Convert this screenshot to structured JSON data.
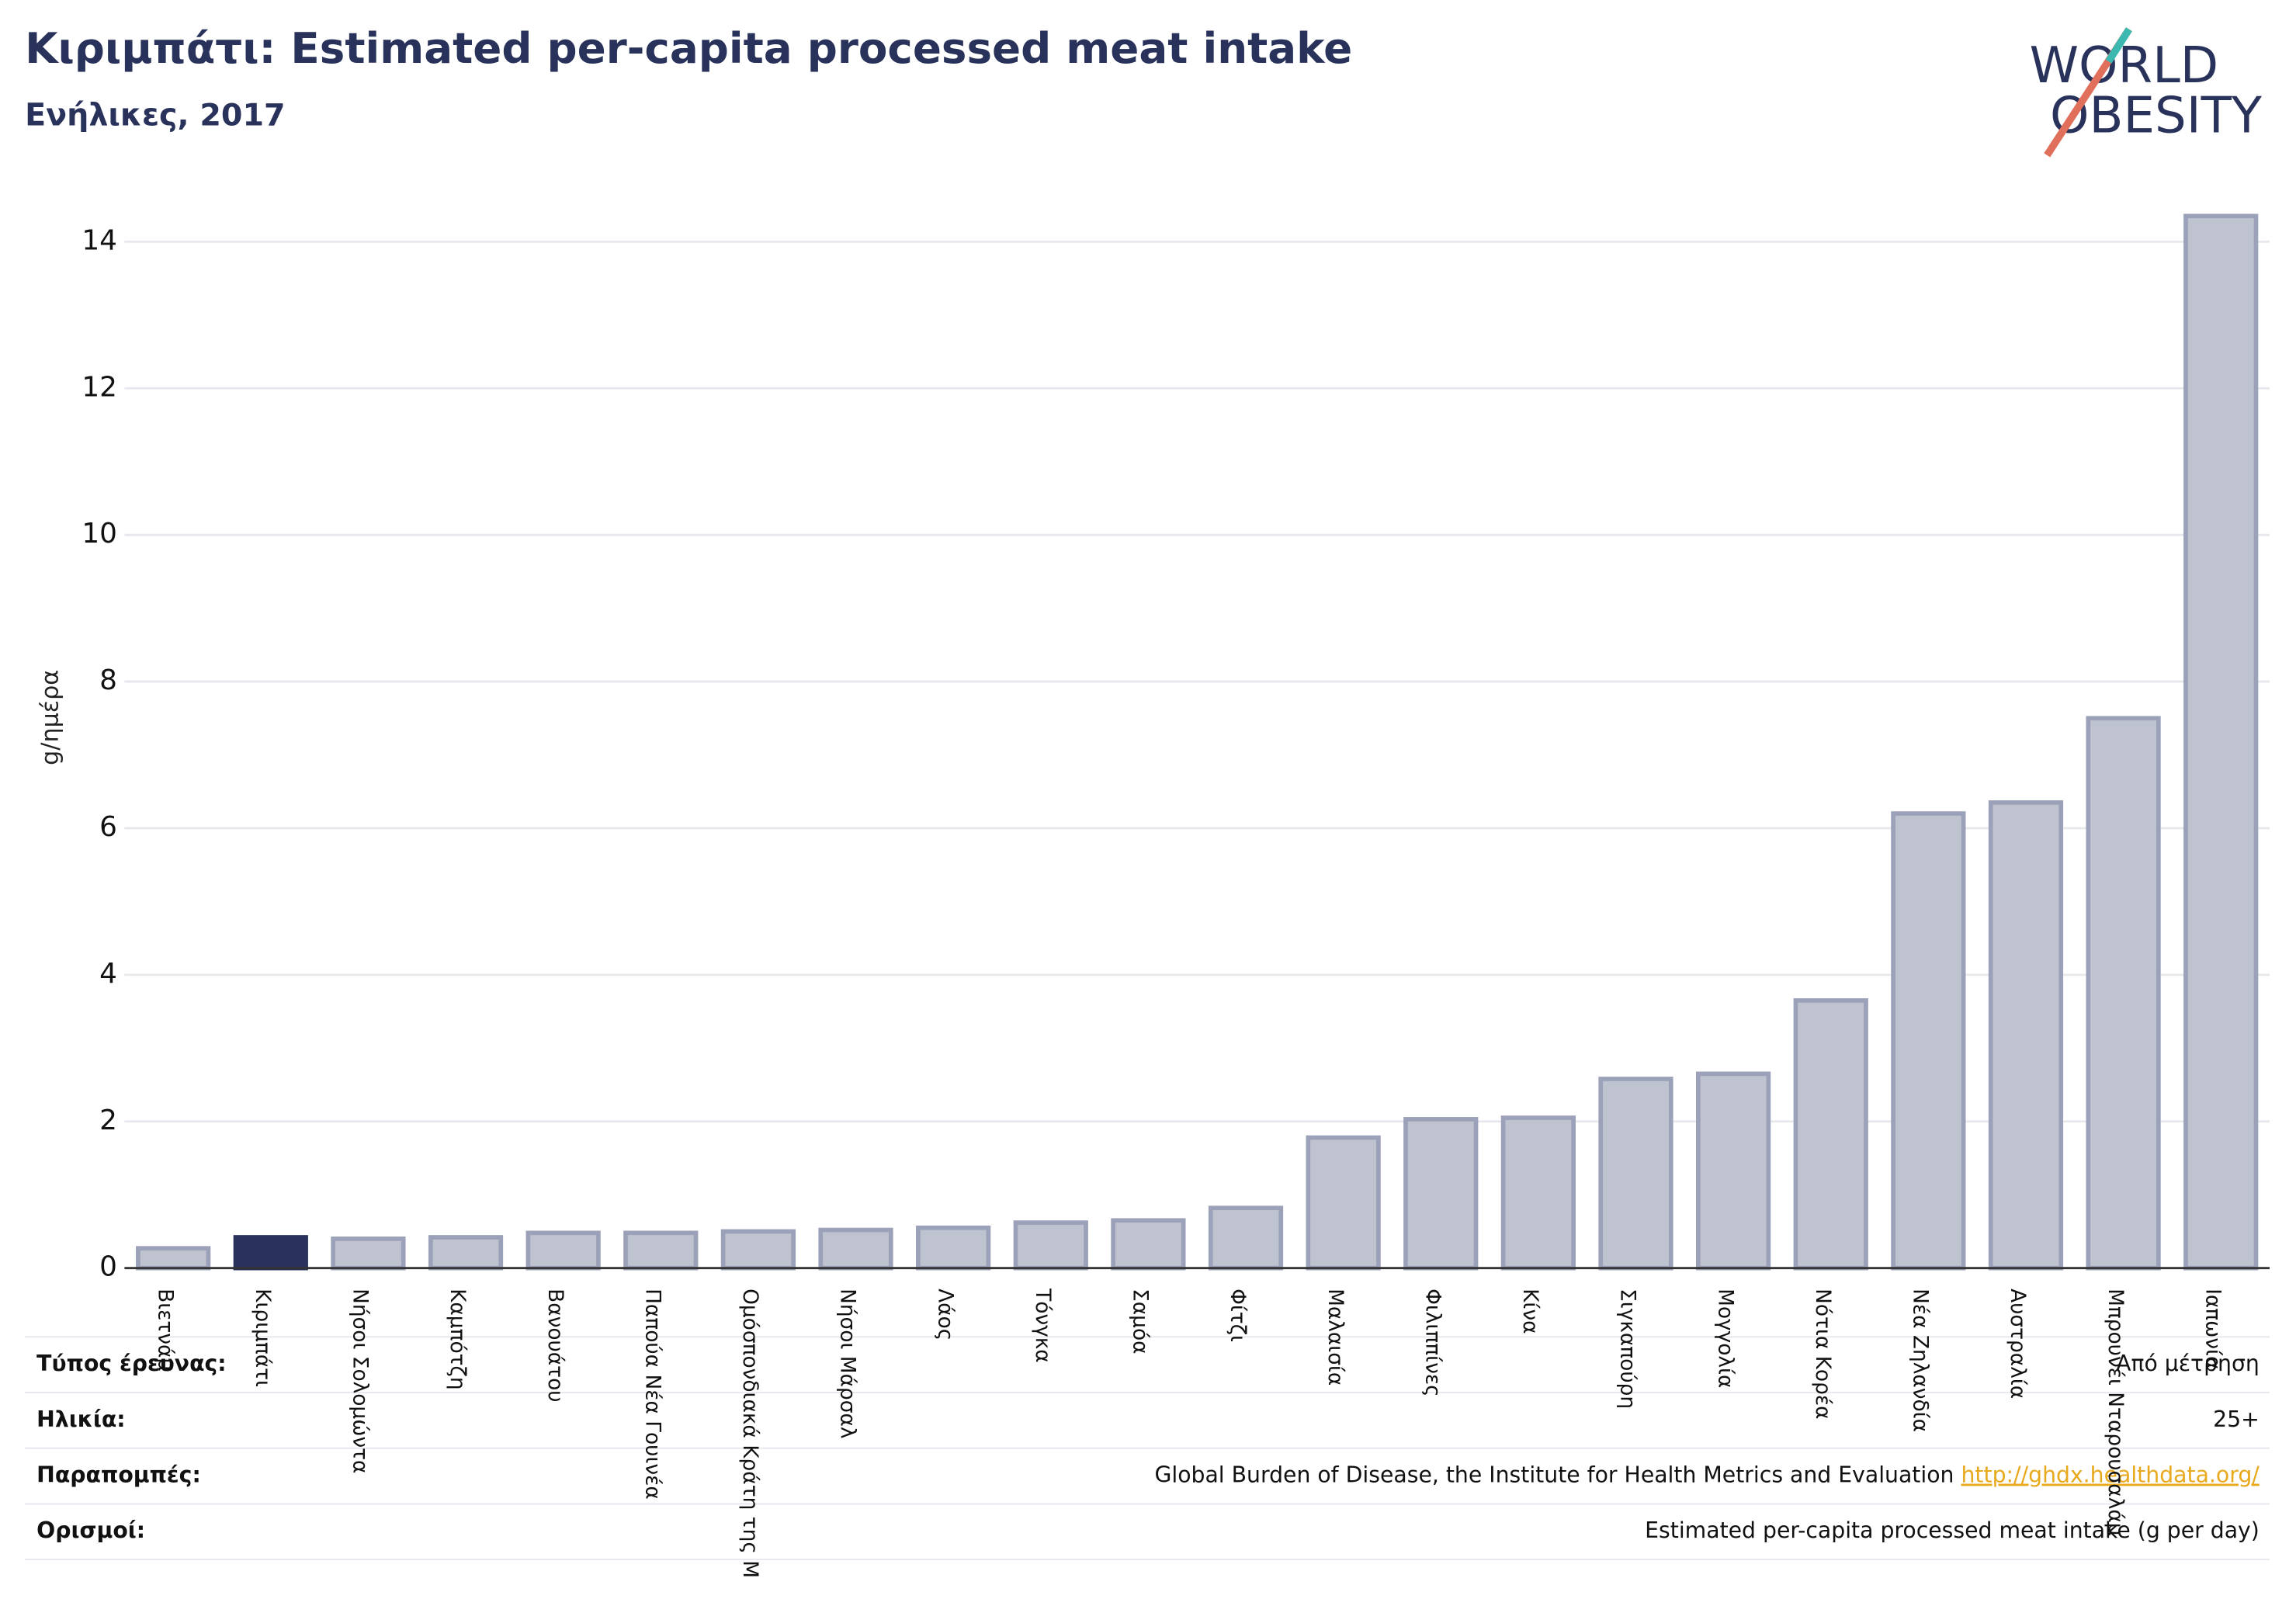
{
  "chart_data": {
    "type": "bar",
    "title": "Κιριμπάτι: Estimated per-capita processed meat intake",
    "subtitle": "Ενήλικες, 2017",
    "y_label": "g/ημέρα",
    "categories": [
      "Βιετνάμ",
      "Κιριμπάτι",
      "Νήσοι Σολομώντα",
      "Καμπότζη",
      "Βανουάτου",
      "Παπούα Νέα Γουινέα",
      "Ομόσπονδιακά Κράτη της Μ",
      "Νήσοι Μάρσαλ",
      "Λάος",
      "Τόνγκα",
      "Σαμόα",
      "Φίτζι",
      "Μαλαισία",
      "Φιλιππίνες",
      "Κίνα",
      "Σιγκαπούρη",
      "Μογγολία",
      "Νότια Κορέα",
      "Νέα Ζηλανδία",
      "Αυστραλία",
      "Μπρουνέι Νταρουσαλάμ",
      "Ιαπωνία"
    ],
    "values": [
      0.27,
      0.42,
      0.4,
      0.42,
      0.48,
      0.48,
      0.5,
      0.52,
      0.55,
      0.62,
      0.65,
      0.82,
      1.78,
      2.03,
      2.05,
      2.58,
      2.65,
      3.65,
      6.2,
      6.35,
      7.5,
      14.35
    ],
    "color": "#bfc3d0",
    "edge_color": "#9aa1b8",
    "highlight_index": 1,
    "highlight_color": "#28325a",
    "ylim": [
      0,
      14.7
    ],
    "yticks": [
      0,
      2,
      4,
      6,
      8,
      10,
      12,
      14
    ],
    "grid": true
  },
  "logo": {
    "line1": "WORLD",
    "line2": "OBESITY"
  },
  "info_table": {
    "rows": [
      {
        "label": "Τύπος έρευνας:",
        "value": "Από μέτρηση"
      },
      {
        "label": "Ηλικία:",
        "value": "25+"
      },
      {
        "label": "Παραπομπές:",
        "value": "Global Burden of Disease, the Institute for Health Metrics and Evaluation",
        "link": "http://ghdx.healthdata.org/"
      },
      {
        "label": "Ορισμοί:",
        "value": "Estimated per-capita processed meat intake (g per day)"
      }
    ]
  }
}
